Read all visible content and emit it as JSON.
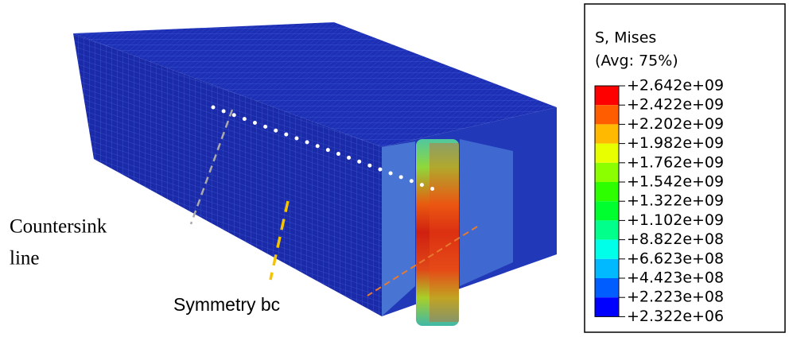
{
  "legend": {
    "title": "S, Mises",
    "subtitle": "(Avg: 75%)",
    "labels": [
      "+2.642e+09",
      "+2.422e+09",
      "+2.202e+09",
      "+1.982e+09",
      "+1.762e+09",
      "+1.542e+09",
      "+1.322e+09",
      "+1.102e+09",
      "+8.822e+08",
      "+6.623e+08",
      "+4.423e+08",
      "+2.223e+08",
      "+2.322e+06"
    ],
    "colors": [
      "#ff0000",
      "#ff5d00",
      "#ffb900",
      "#e8ff00",
      "#8bff00",
      "#2eff00",
      "#00ff2e",
      "#00ff8b",
      "#00ffe8",
      "#00b9ff",
      "#005dff",
      "#0000ff"
    ]
  },
  "annotations": {
    "countersink": [
      "Countersink",
      "line"
    ],
    "symmetry": "Symmetry bc"
  }
}
